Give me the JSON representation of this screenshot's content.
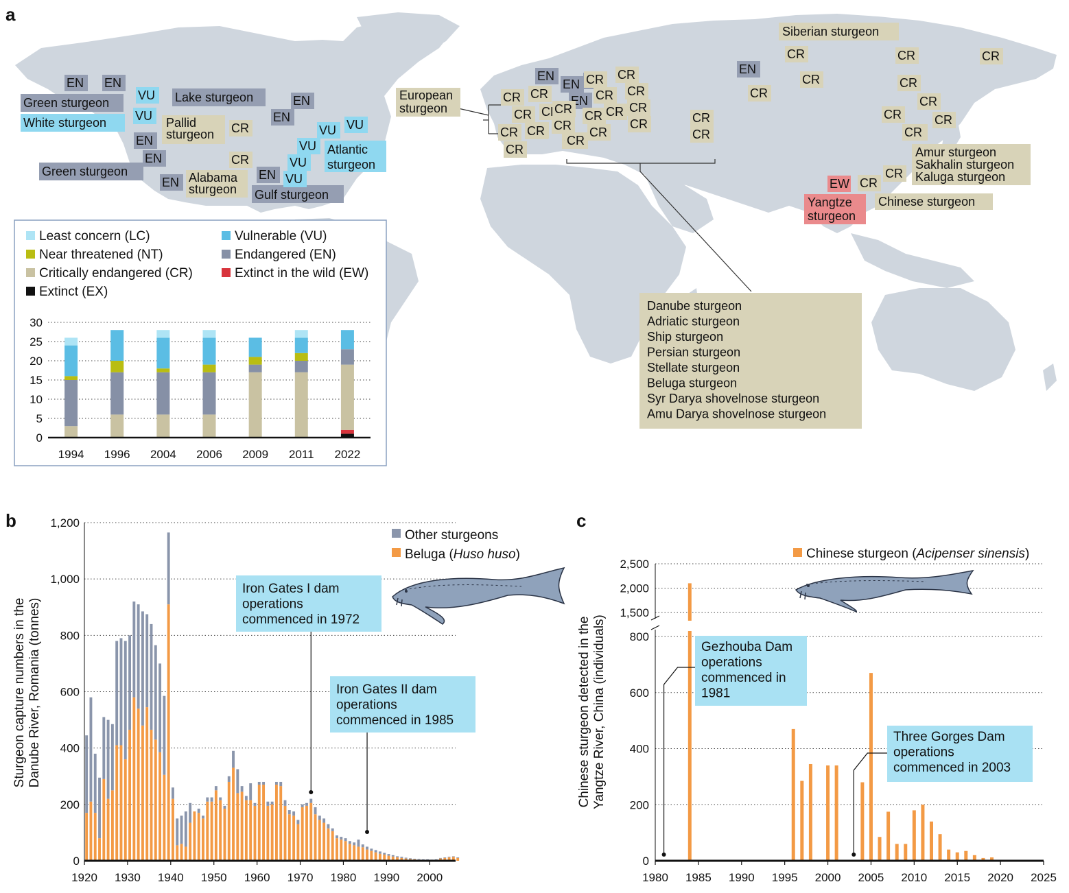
{
  "colors": {
    "LC": "#aee4f5",
    "NT": "#b9bd12",
    "CR": "#c9c2a2",
    "VU": "#5bbde4",
    "EN": "#8690a6",
    "EW": "#d8343c",
    "EX": "#111111",
    "beluga": "#f39a45",
    "other": "#8a95ab",
    "chinese": "#f39a45",
    "box_en": "#959eb2",
    "box_vu": "#8fd8f0",
    "box_cr": "#d8d3b8",
    "box_ew": "#ea8a8c",
    "callout": "#a9e1f3"
  },
  "panel_a": {
    "letter": "a",
    "species_labels": {
      "green_sturgeon_1": "Green sturgeon",
      "white_sturgeon": "White sturgeon",
      "green_sturgeon_2": "Green sturgeon",
      "lake_sturgeon": "Lake sturgeon",
      "pallid_1": "Pallid",
      "pallid_2": "sturgeon",
      "alabama_1": "Alabama",
      "alabama_2": "sturgeon",
      "gulf_sturgeon": "Gulf sturgeon",
      "atlantic_1": "Atlantic",
      "atlantic_2": "sturgeon",
      "european_1": "European",
      "european_2": "sturgeon",
      "siberian_sturgeon": "Siberian sturgeon",
      "amur_group": [
        "Amur sturgeon",
        "Sakhalin sturgeon",
        "Kaluga sturgeon"
      ],
      "chinese_sturgeon": "Chinese sturgeon",
      "yangtze_1": "Yangtze",
      "yangtze_2": "sturgeon",
      "caspian_group": [
        "Danube sturgeon",
        "Adriatic sturgeon",
        "Ship sturgeon",
        "Persian sturgeon",
        "Stellate sturgeon",
        "Beluga sturgeon",
        "Syr Darya shovelnose sturgeon",
        "Amu Darya shovelnose sturgeon"
      ]
    },
    "status_tags": [
      "EN",
      "EN",
      "VU",
      "VU",
      "EN",
      "EN",
      "EN",
      "EN",
      "EN",
      "EN",
      "CR",
      "CR",
      "VU",
      "VU",
      "VU",
      "VU",
      "VU",
      "EN",
      "CR",
      "CR",
      "CR",
      "CR",
      "CR",
      "CR",
      "CR",
      "CR",
      "CR",
      "EN",
      "EN",
      "EN",
      "CR",
      "CR",
      "CR",
      "CR",
      "CR",
      "CR",
      "CR",
      "CR",
      "CR",
      "CR",
      "CR",
      "EN",
      "CR",
      "CR",
      "CR",
      "CR",
      "CR",
      "CR",
      "CR",
      "CR",
      "CR",
      "CR",
      "CR",
      "CR",
      "CR",
      "CR",
      "CR",
      "CR",
      "CR",
      "EW",
      "CR"
    ],
    "legend": [
      {
        "key": "LC",
        "label": "Least concern (LC)"
      },
      {
        "key": "VU",
        "label": "Vulnerable (VU)"
      },
      {
        "key": "NT",
        "label": "Near threatened (NT)"
      },
      {
        "key": "EN",
        "label": "Endangered (EN)"
      },
      {
        "key": "CR",
        "label": "Critically endangered (CR)"
      },
      {
        "key": "EW",
        "label": "Extinct in the wild (EW)"
      },
      {
        "key": "EX",
        "label": "Extinct (EX)"
      }
    ]
  },
  "chart_data": [
    {
      "type": "bar",
      "stacked": true,
      "categories": [
        "1994",
        "1996",
        "2004",
        "2006",
        "2009",
        "2011",
        "2022"
      ],
      "series": [
        {
          "name": "Extinct (EX)",
          "key": "EX",
          "values": [
            0,
            0,
            0,
            0,
            0,
            0,
            1
          ]
        },
        {
          "name": "Extinct in the wild (EW)",
          "key": "EW",
          "values": [
            0,
            0,
            0,
            0,
            0,
            0,
            1
          ]
        },
        {
          "name": "Critically endangered (CR)",
          "key": "CR",
          "values": [
            3,
            6,
            6,
            6,
            17,
            17,
            17
          ]
        },
        {
          "name": "Endangered (EN)",
          "key": "EN",
          "values": [
            12,
            11,
            11,
            11,
            2,
            3,
            4
          ]
        },
        {
          "name": "Near threatened (NT)",
          "key": "NT",
          "values": [
            1,
            3,
            1,
            2,
            2,
            2,
            0
          ]
        },
        {
          "name": "Vulnerable (VU)",
          "key": "VU",
          "values": [
            8,
            8,
            8,
            7,
            5,
            4,
            5
          ]
        },
        {
          "name": "Least concern (LC)",
          "key": "LC",
          "values": [
            2,
            0,
            2,
            2,
            0,
            2,
            0
          ]
        }
      ],
      "ylim": [
        0,
        30
      ],
      "yticks": [
        "0",
        "5",
        "10",
        "15",
        "20",
        "25",
        "30"
      ],
      "grid": true
    },
    {
      "type": "bar",
      "stacked": true,
      "x_start": 1920,
      "ylabel_lines": [
        "Sturgeon capture numbers in the",
        "Danube River, Romania (tonnes)"
      ],
      "yticks": [
        "0",
        "200",
        "400",
        "600",
        "800",
        "1,000",
        "1,200"
      ],
      "xticks": [
        "1920",
        "1930",
        "1940",
        "1950",
        "1960",
        "1970",
        "1980",
        "1990",
        "2000"
      ],
      "ylim": [
        0,
        1200
      ],
      "xlim": [
        1920,
        2006
      ],
      "legend": {
        "other": "Other sturgeons",
        "beluga_prefix": "Beluga (",
        "beluga_italic": "Huso huso",
        "beluga_suffix": ")"
      },
      "callouts": [
        {
          "lines": [
            "Iron Gates I dam",
            "operations",
            "commenced in 1972"
          ],
          "year": 1972
        },
        {
          "lines": [
            "Iron Gates II dam",
            "operations",
            "commenced in 1985"
          ],
          "year": 1985
        }
      ],
      "beluga": [
        170,
        210,
        170,
        80,
        290,
        220,
        250,
        410,
        410,
        360,
        465,
        580,
        540,
        480,
        545,
        465,
        430,
        385,
        305,
        910,
        220,
        55,
        60,
        50,
        135,
        175,
        170,
        150,
        210,
        210,
        250,
        215,
        185,
        280,
        330,
        240,
        245,
        215,
        215,
        195,
        270,
        270,
        195,
        200,
        270,
        265,
        195,
        165,
        160,
        130,
        190,
        195,
        205,
        165,
        145,
        135,
        115,
        105,
        80,
        75,
        70,
        60,
        55,
        50,
        48,
        40,
        35,
        30,
        25,
        22,
        18,
        15,
        12,
        10,
        8,
        6,
        5,
        4,
        3,
        3,
        2,
        3,
        8,
        10,
        12,
        14,
        10
      ],
      "other": [
        275,
        370,
        210,
        215,
        220,
        280,
        235,
        370,
        380,
        420,
        335,
        340,
        370,
        405,
        330,
        375,
        335,
        315,
        280,
        255,
        40,
        95,
        100,
        125,
        70,
        0,
        0,
        0,
        0,
        0,
        0,
        0,
        0,
        0,
        0,
        0,
        0,
        0,
        0,
        0,
        0,
        0,
        0,
        0,
        0,
        0,
        0,
        0,
        0,
        0,
        0,
        0,
        0,
        0,
        0,
        0,
        0,
        0,
        0,
        0,
        0,
        0,
        0,
        0,
        0,
        0,
        0,
        0,
        0,
        0,
        0,
        0,
        0,
        0,
        0,
        0,
        0,
        0,
        0,
        0,
        0,
        0,
        0,
        0,
        0,
        0,
        0
      ],
      "other_tail": [
        0,
        0,
        0,
        0,
        0,
        0,
        0,
        0,
        0,
        0,
        0,
        0,
        0,
        0,
        0,
        0,
        0,
        0,
        0,
        0,
        0,
        0,
        0,
        0,
        0,
        0,
        15,
        10,
        15,
        15,
        15,
        10,
        10,
        20,
        60,
        85,
        20,
        15,
        60,
        10,
        10,
        10,
        15,
        10,
        10,
        15,
        20,
        15,
        15,
        15,
        10,
        10,
        15,
        25,
        15,
        15,
        15,
        10,
        10,
        10,
        10,
        10,
        10,
        25,
        10,
        10,
        8,
        8,
        8,
        6,
        6,
        5,
        4,
        4,
        3,
        3,
        2,
        2,
        2,
        2,
        2,
        2,
        2,
        2,
        2,
        2,
        2
      ]
    },
    {
      "type": "bar",
      "ylabel_lines": [
        "Chinese sturgeon detected in the",
        "Yangtze River, China (individuals)"
      ],
      "series_name_prefix": "Chinese sturgeon (",
      "series_name_italic": "Acipenser sinensis",
      "series_name_suffix": ")",
      "yticks_lower": [
        "0",
        "200",
        "400",
        "600",
        "800"
      ],
      "yticks_upper": [
        "1,500",
        "2,000",
        "2,500"
      ],
      "xticks": [
        "1980",
        "1985",
        "1990",
        "1995",
        "2000",
        "2005",
        "2010",
        "2015",
        "2020",
        "2025"
      ],
      "xlim": [
        1980,
        2025
      ],
      "broken_axis": true,
      "values": {
        "1984": 2100,
        "1996": 470,
        "1997": 285,
        "1998": 345,
        "2000": 340,
        "2001": 340,
        "2004": 280,
        "2005": 670,
        "2006": 85,
        "2007": 175,
        "2008": 60,
        "2009": 60,
        "2010": 180,
        "2011": 200,
        "2012": 140,
        "2013": 95,
        "2014": 40,
        "2015": 30,
        "2016": 35,
        "2017": 20,
        "2018": 10,
        "2019": 12,
        "2020": 3,
        "2021": 2,
        "2022": 2,
        "2023": 3
      },
      "callouts": [
        {
          "lines": [
            "Gezhouba Dam",
            "operations",
            "commenced in",
            "1981"
          ],
          "year": 1981
        },
        {
          "lines": [
            "Three Gorges Dam",
            "operations",
            "commenced in 2003"
          ],
          "year": 2003
        }
      ]
    }
  ],
  "panel_b": {
    "letter": "b"
  },
  "panel_c": {
    "letter": "c"
  }
}
